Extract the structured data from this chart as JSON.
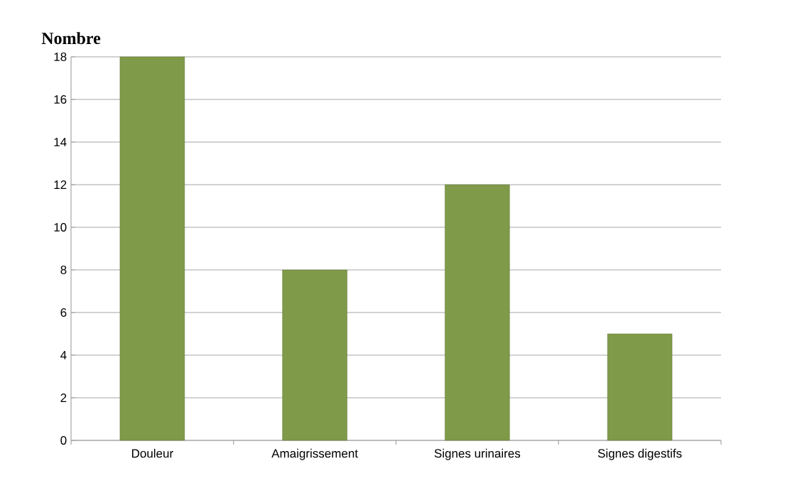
{
  "chart_data": {
    "type": "bar",
    "ylabel": "Nombre",
    "categories": [
      "Douleur",
      "Amaigrissement",
      "Signes urinaires",
      "Signes digestifs"
    ],
    "values": [
      18,
      8,
      12,
      5
    ],
    "color": "#7f9a48",
    "ylim": [
      0,
      18
    ],
    "yticks": [
      0,
      2,
      4,
      6,
      8,
      10,
      12,
      14,
      16,
      18
    ],
    "grid": "y"
  }
}
